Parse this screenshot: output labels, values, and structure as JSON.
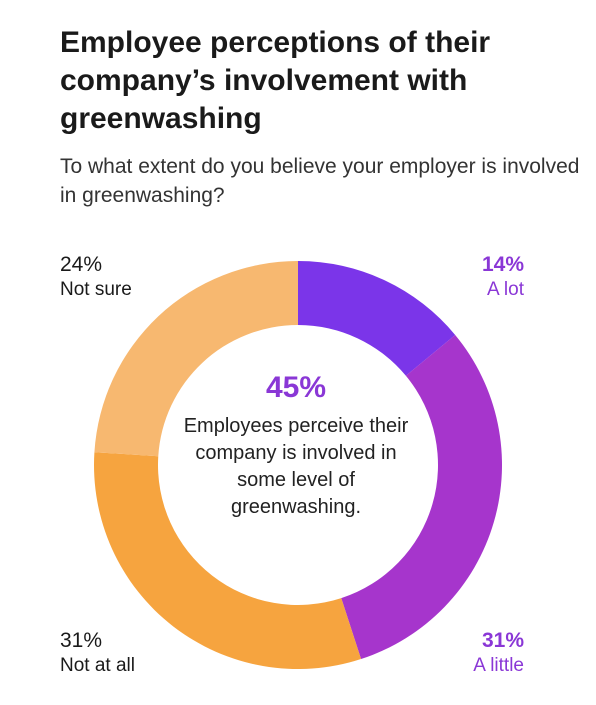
{
  "title": "Employee perceptions of their company’s involvement with greenwashing",
  "subtitle": "To what extent do you believe your employer is involved in greenwashing?",
  "center": {
    "value": "45%",
    "description": "Employees perceive their company is involved in some level of greenwashing."
  },
  "colors": {
    "a_lot": "#7b35e9",
    "a_little": "#a635cc",
    "not_at_all": "#f6a43f",
    "not_sure": "#f7b870",
    "accent_text": "#8a37d6"
  },
  "chart_data": {
    "type": "pie",
    "donut": true,
    "title": "Employee perceptions of their company’s involvement with greenwashing",
    "categories": [
      "A lot",
      "A little",
      "Not at all",
      "Not sure"
    ],
    "values": [
      14,
      31,
      31,
      24
    ],
    "value_labels": [
      "14%",
      "31%",
      "31%",
      "24%"
    ],
    "colors": [
      "#7b35e9",
      "#a635cc",
      "#f6a43f",
      "#f7b870"
    ],
    "start": "12 o'clock",
    "direction": "clockwise"
  }
}
